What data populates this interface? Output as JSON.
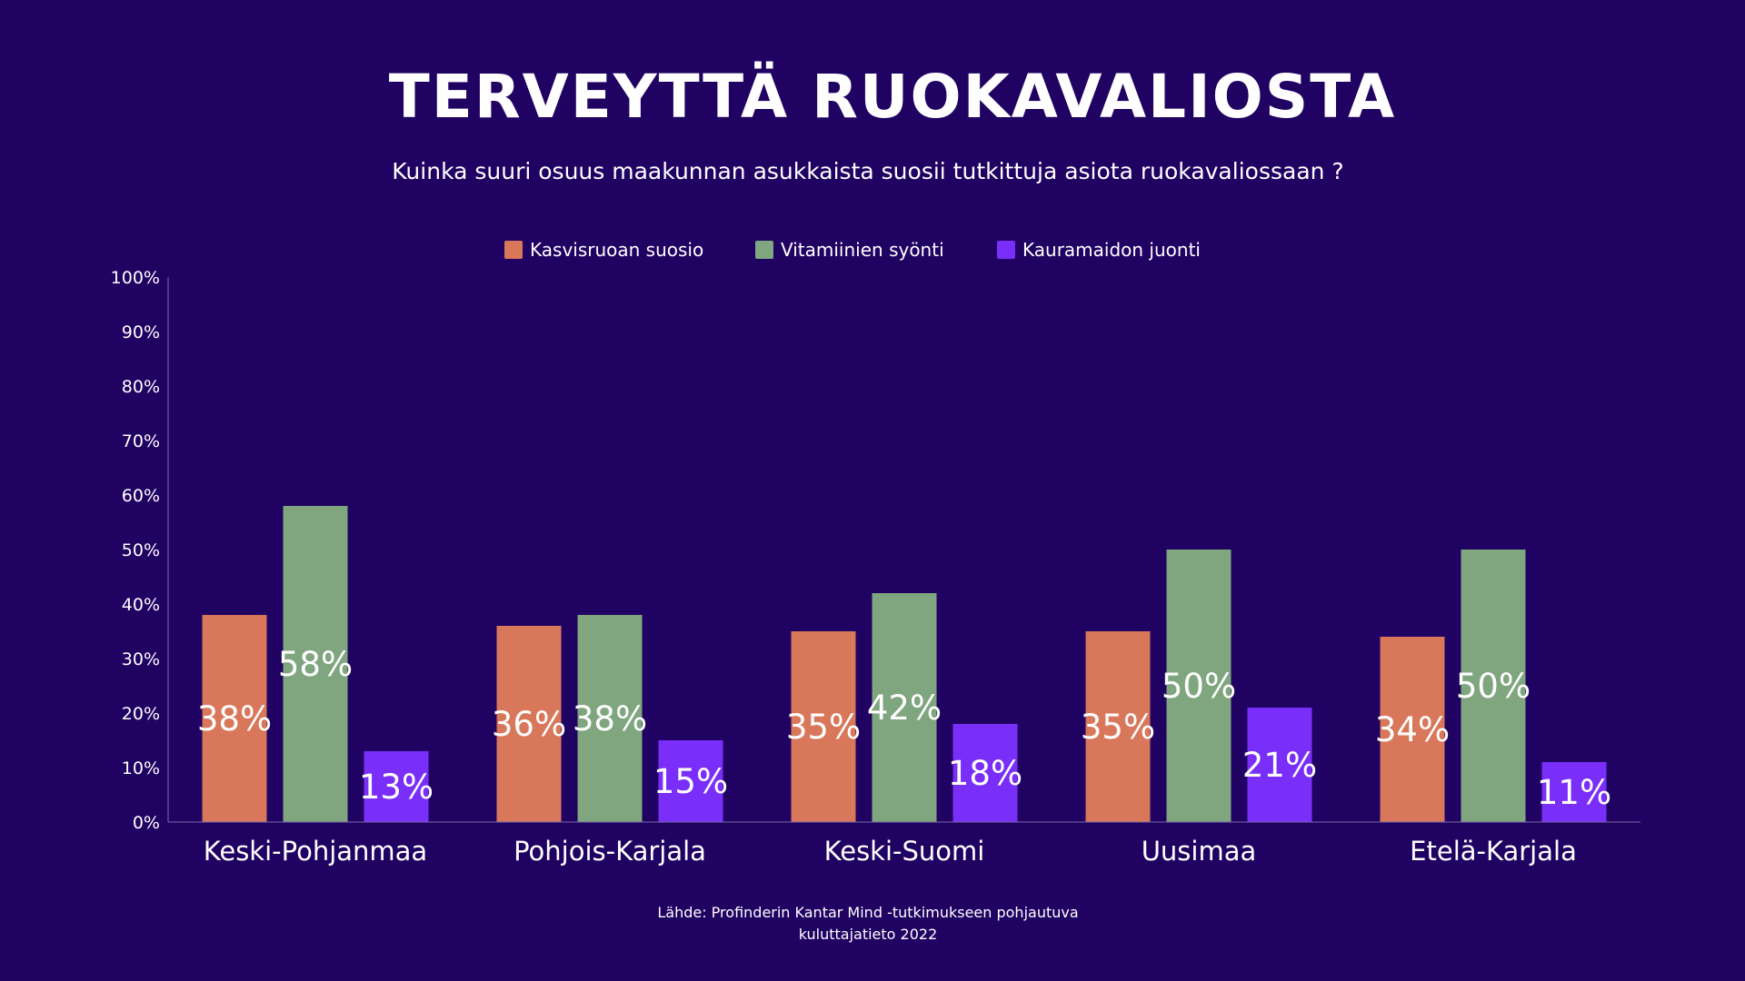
{
  "title": "TERVEYTTÄ RUOKAVALIOSTA",
  "subtitle": "Kuinka suuri osuus maakunnan asukkaista  suosii tutkittuja asiota ruokavaliossaan ?",
  "source": {
    "line1": "Lähde: Profinderin Kantar Mind -tutkimukseen pohjautuva",
    "line2": "kuluttajatieto 2022"
  },
  "colors": {
    "background": "#200262",
    "axis": "#7a6aa8"
  },
  "chart_data": {
    "type": "bar",
    "categories": [
      "Keski-Pohjanmaa",
      "Pohjois-Karjala",
      "Keski-Suomi",
      "Uusimaa",
      "Etelä-Karjala"
    ],
    "series": [
      {
        "name": "Kasvisruoan suosio",
        "color": "#D9775A",
        "values": [
          38,
          36,
          35,
          35,
          34
        ],
        "labels": [
          "38%",
          "36%",
          "35%",
          "35%",
          "34%"
        ]
      },
      {
        "name": "Vitamiinien syönti",
        "color": "#7FA67F",
        "values": [
          58,
          38,
          42,
          50,
          50
        ],
        "labels": [
          "58%",
          "38%",
          "42%",
          "50%",
          "50%"
        ]
      },
      {
        "name": "Kauramaidon juonti",
        "color": "#7A2EF9",
        "values": [
          13,
          15,
          18,
          21,
          11
        ],
        "labels": [
          "13%",
          "15%",
          "18%",
          "21%",
          "11%"
        ]
      }
    ],
    "yticks": [
      "0%",
      "10%",
      "20%",
      "30%",
      "40%",
      "50%",
      "60%",
      "70%",
      "80%",
      "90%",
      "100%"
    ],
    "ylim": [
      0,
      100
    ],
    "xlabel": "",
    "ylabel": "",
    "grid": false,
    "legend": "top-center"
  }
}
